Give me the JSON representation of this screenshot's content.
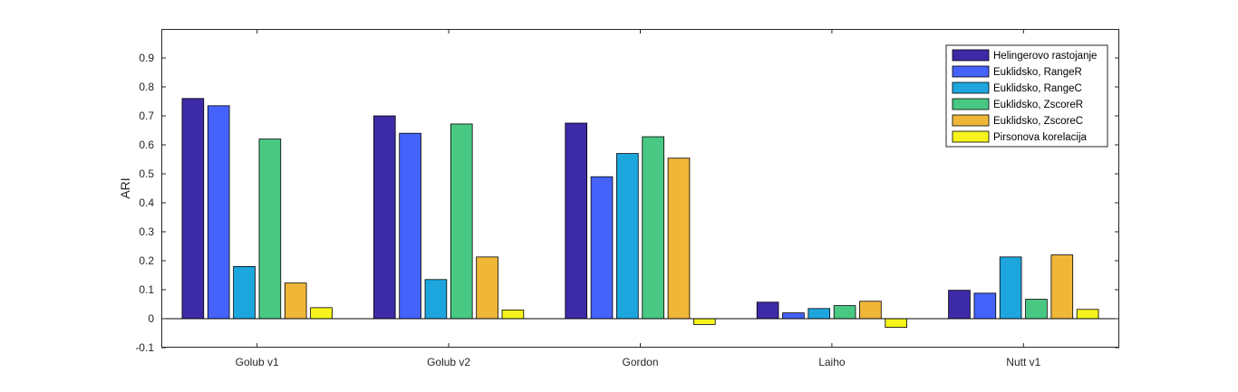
{
  "chart_data": {
    "type": "bar",
    "title": "",
    "xlabel": "",
    "ylabel": "ARI",
    "ylim": [
      -0.1,
      1.0
    ],
    "yticks": [
      -0.1,
      0,
      0.1,
      0.2,
      0.3,
      0.4,
      0.5,
      0.6,
      0.7,
      0.8,
      0.9
    ],
    "ytick_labels": [
      "-0.1",
      "0",
      "0.1",
      "0.2",
      "0.3",
      "0.4",
      "0.5",
      "0.6",
      "0.7",
      "0.8",
      "0.9"
    ],
    "grid": false,
    "legend_position": "top-right",
    "categories": [
      "Golub v1",
      "Golub v2",
      "Gordon",
      "Laiho",
      "Nutt v1"
    ],
    "series": [
      {
        "name": "Helingerovo rastojanje",
        "color": "#3d2aa6",
        "values": [
          0.76,
          0.7,
          0.675,
          0.057,
          0.098
        ]
      },
      {
        "name": "Euklidsko, RangeR",
        "color": "#4562fb",
        "values": [
          0.735,
          0.64,
          0.49,
          0.02,
          0.088
        ]
      },
      {
        "name": "Euklidsko, RangeC",
        "color": "#1da6de",
        "values": [
          0.18,
          0.135,
          0.57,
          0.035,
          0.213
        ]
      },
      {
        "name": "Euklidsko, ZscoreR",
        "color": "#49c883",
        "values": [
          0.62,
          0.672,
          0.628,
          0.045,
          0.067
        ]
      },
      {
        "name": "Euklidsko, ZscoreC",
        "color": "#efb638",
        "values": [
          0.123,
          0.213,
          0.554,
          0.06,
          0.22
        ]
      },
      {
        "name": "Pirsonova korelacija",
        "color": "#f6f41c",
        "values": [
          0.038,
          0.03,
          -0.02,
          -0.03,
          0.032
        ]
      }
    ]
  }
}
